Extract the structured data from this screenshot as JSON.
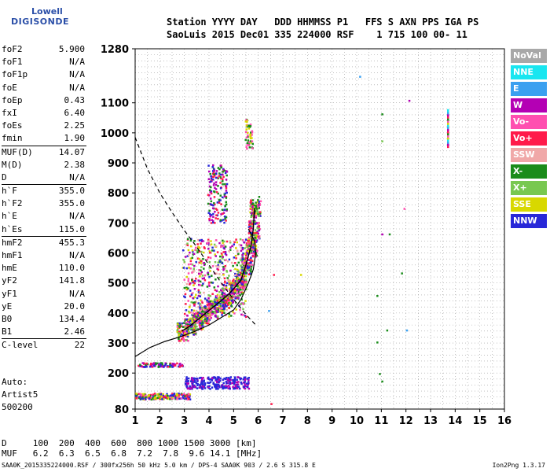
{
  "logo": {
    "line1": "Lowell",
    "line2": "DIGISONDE"
  },
  "header": {
    "labels": "Station YYYY DAY   DDD HHMMSS P1   FFS S AXN PPS IGA PS",
    "values": "SaoLuis 2015 Dec01 335 224000 RSF    1 715 100 00- 11"
  },
  "params": [
    {
      "label": "foF2",
      "value": "5.900"
    },
    {
      "label": "foF1",
      "value": "N/A"
    },
    {
      "label": "foF1p",
      "value": "N/A"
    },
    {
      "label": "foE",
      "value": "N/A"
    },
    {
      "label": "foEp",
      "value": "0.43"
    },
    {
      "label": "fxI",
      "value": "6.40"
    },
    {
      "label": "foEs",
      "value": "2.25"
    },
    {
      "label": "fmin",
      "value": "1.90"
    },
    {
      "sep": true
    },
    {
      "label": "MUF(D)",
      "value": "14.07"
    },
    {
      "label": "M(D)",
      "value": "2.38"
    },
    {
      "label": "D",
      "value": "N/A"
    },
    {
      "sep": true
    },
    {
      "label": "h`F",
      "value": "355.0"
    },
    {
      "label": "h`F2",
      "value": "355.0"
    },
    {
      "label": "h`E",
      "value": "N/A"
    },
    {
      "label": "h`Es",
      "value": "115.0"
    },
    {
      "sep": true
    },
    {
      "label": "hmF2",
      "value": "455.3"
    },
    {
      "label": "hmF1",
      "value": "N/A"
    },
    {
      "label": "hmE",
      "value": "110.0"
    },
    {
      "label": "yF2",
      "value": "141.8"
    },
    {
      "label": "yF1",
      "value": "N/A"
    },
    {
      "label": "yE",
      "value": "20.0"
    },
    {
      "label": "B0",
      "value": "134.4"
    },
    {
      "label": "B1",
      "value": "2.46"
    },
    {
      "sep": true
    },
    {
      "label": "C-level",
      "value": "22"
    }
  ],
  "autoscaling": [
    "Auto:",
    "Artist5",
    "500200"
  ],
  "legend": [
    {
      "label": "NoVal",
      "color": "#a8a8a8"
    },
    {
      "label": "NNE",
      "color": "#19e6f0"
    },
    {
      "label": "E",
      "color": "#3aa0f0"
    },
    {
      "label": "W",
      "color": "#b400b4"
    },
    {
      "label": "Vo-",
      "color": "#ff4fb0"
    },
    {
      "label": "Vo+",
      "color": "#ff1a4a"
    },
    {
      "label": "SSW",
      "color": "#f0a8a8"
    },
    {
      "label": "X-",
      "color": "#1a8c1a"
    },
    {
      "label": "X+",
      "color": "#78c850"
    },
    {
      "label": "SSE",
      "color": "#d8d800"
    },
    {
      "label": "NNW",
      "color": "#2828d8"
    }
  ],
  "muf_table": {
    "d_label": "D",
    "d_values": [
      "100",
      "200",
      "400",
      "600",
      "800",
      "1000",
      "1500",
      "3000"
    ],
    "d_unit": "[km]",
    "muf_label": "MUF",
    "muf_values": [
      "6.2",
      "6.3",
      "6.5",
      "6.8",
      "7.2",
      "7.8",
      "9.6",
      "14.1"
    ],
    "muf_unit": "[MHz]"
  },
  "footer": "SAA0K_2015335224000.RSF / 300fx256h 50 kHz 5.0 km / DPS-4 SAA0K 903 / 2.6 S 315.8 E",
  "version": "Ion2Png 1.3.17",
  "chart_data": {
    "type": "scatter",
    "xlim": [
      1,
      16
    ],
    "ylim": [
      80,
      1280
    ],
    "xticks": [
      "1",
      "2",
      "3",
      "4",
      "5",
      "6",
      "7",
      "8",
      "9",
      "10",
      "11",
      "12",
      "13",
      "14",
      "15",
      "16"
    ],
    "yticks": [
      "80",
      "200",
      "300",
      "400",
      "500",
      "600",
      "700",
      "800",
      "900",
      "1000",
      "1100",
      "1280"
    ],
    "grid": true,
    "profile_dashed": {
      "x": [
        1.0,
        1.5,
        2.0,
        2.5,
        3.0,
        3.5,
        4.0,
        4.5,
        5.0,
        5.5,
        5.9
      ],
      "y": [
        985,
        880,
        800,
        735,
        675,
        620,
        560,
        500,
        445,
        395,
        360
      ]
    },
    "profile_solid": {
      "x": [
        1.0,
        1.6,
        2.2,
        2.8,
        3.4,
        4.0,
        4.5,
        5.0,
        5.3,
        5.6,
        5.8,
        5.9,
        5.85,
        5.6
      ],
      "y": [
        255,
        285,
        305,
        320,
        338,
        360,
        385,
        410,
        445,
        500,
        545,
        600,
        640,
        680
      ]
    },
    "trace_o": {
      "x": [
        2.9,
        3.2,
        3.5,
        3.8,
        4.1,
        4.4,
        4.7,
        5.0,
        5.3,
        5.5,
        5.7,
        5.8,
        5.85
      ],
      "y": [
        340,
        355,
        375,
        395,
        415,
        435,
        455,
        480,
        510,
        560,
        620,
        680,
        750
      ]
    },
    "es_layer": {
      "x": [
        1.2,
        1.6,
        2.0,
        2.2,
        2.5
      ],
      "y": [
        125,
        125,
        125,
        125,
        125
      ]
    }
  }
}
